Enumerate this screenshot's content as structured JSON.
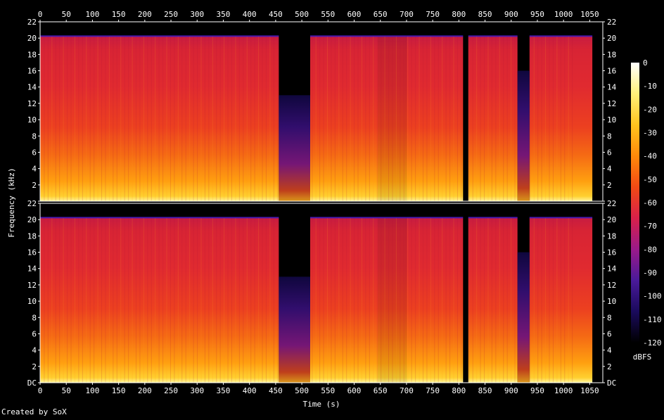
{
  "chart_data": {
    "type": "heatmap",
    "title": "",
    "xlabel": "Time (s)",
    "ylabel": "Frequency (kHz)",
    "xlim": [
      0,
      1075
    ],
    "ylim": [
      0,
      22
    ],
    "x_ticks": [
      0,
      50,
      100,
      150,
      200,
      250,
      300,
      350,
      400,
      450,
      500,
      550,
      600,
      650,
      700,
      750,
      800,
      850,
      900,
      950,
      1000,
      1050
    ],
    "y_ticks": [
      {
        "value": 0,
        "label": "DC"
      },
      {
        "value": 2,
        "label": "2"
      },
      {
        "value": 4,
        "label": "4"
      },
      {
        "value": 6,
        "label": "6"
      },
      {
        "value": 8,
        "label": "8"
      },
      {
        "value": 10,
        "label": "10"
      },
      {
        "value": 12,
        "label": "12"
      },
      {
        "value": 14,
        "label": "14"
      },
      {
        "value": 16,
        "label": "16"
      },
      {
        "value": 18,
        "label": "18"
      },
      {
        "value": 20,
        "label": "20"
      },
      {
        "value": 22,
        "label": "22"
      }
    ],
    "channels": 2,
    "colorbar": {
      "label": "dBFS",
      "range": [
        -120,
        0
      ],
      "ticks": [
        0,
        -10,
        -20,
        -30,
        -40,
        -50,
        -60,
        -70,
        -80,
        -90,
        -100,
        -110,
        -120
      ],
      "stops": [
        "#000000",
        "#1a0a5c",
        "#4a1a9a",
        "#9a1a8a",
        "#d8204a",
        "#f24a14",
        "#ff8a0a",
        "#ffc41e",
        "#fff07a",
        "#ffffff"
      ]
    },
    "silent_gaps_s": [
      [
        456,
        516
      ],
      [
        808,
        818
      ],
      [
        912,
        935
      ]
    ],
    "segments": [
      {
        "start": 0,
        "end": 456,
        "cutoff_khz": 20.2,
        "level_dbfs": -55
      },
      {
        "start": 516,
        "end": 645,
        "cutoff_khz": 20.2,
        "level_dbfs": -55
      },
      {
        "start": 645,
        "end": 700,
        "cutoff_khz": 20.2,
        "level_dbfs": -60
      },
      {
        "start": 700,
        "end": 808,
        "cutoff_khz": 20.2,
        "level_dbfs": -55
      },
      {
        "start": 818,
        "end": 912,
        "cutoff_khz": 20.2,
        "level_dbfs": -56
      },
      {
        "start": 935,
        "end": 1055,
        "cutoff_khz": 20.2,
        "level_dbfs": -55
      }
    ]
  },
  "footer": {
    "credit": "Created by SoX"
  }
}
